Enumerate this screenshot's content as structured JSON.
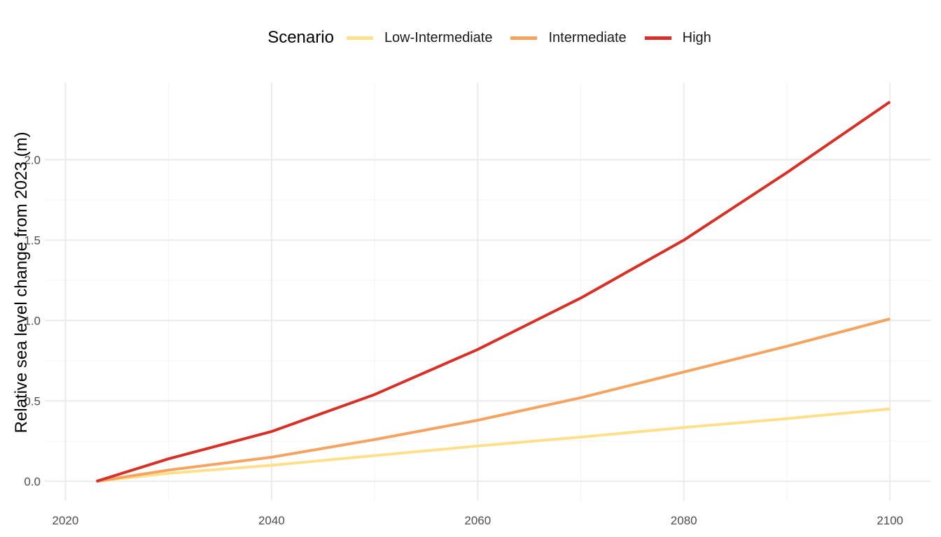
{
  "chart_data": {
    "type": "line",
    "title": "",
    "xlabel": "",
    "ylabel": "Relative sea level change from 2023 (m)",
    "xlim": [
      2018,
      2104
    ],
    "ylim": [
      -0.12,
      2.48
    ],
    "x_ticks": [
      2020,
      2040,
      2060,
      2080,
      2100
    ],
    "y_ticks": [
      0.0,
      0.5,
      1.0,
      1.5,
      2.0
    ],
    "y_tick_labels": [
      "0.0",
      "0.5",
      "1.0",
      "1.5",
      "2.0"
    ],
    "grid": true,
    "legend": {
      "title": "Scenario",
      "position": "top-center"
    },
    "series": [
      {
        "name": "Low-Intermediate",
        "color": "#FEE08B",
        "x": [
          2023,
          2030,
          2040,
          2050,
          2060,
          2070,
          2080,
          2090,
          2100
        ],
        "values": [
          0.0,
          0.05,
          0.1,
          0.16,
          0.22,
          0.275,
          0.335,
          0.39,
          0.45
        ]
      },
      {
        "name": "Intermediate",
        "color": "#F4A460",
        "x": [
          2023,
          2030,
          2040,
          2050,
          2060,
          2070,
          2080,
          2090,
          2100
        ],
        "values": [
          0.0,
          0.07,
          0.15,
          0.26,
          0.38,
          0.52,
          0.68,
          0.84,
          1.01
        ]
      },
      {
        "name": "High",
        "color": "#D73027",
        "x": [
          2023,
          2030,
          2040,
          2050,
          2060,
          2070,
          2080,
          2090,
          2100
        ],
        "values": [
          0.0,
          0.14,
          0.31,
          0.54,
          0.82,
          1.14,
          1.5,
          1.92,
          2.36
        ]
      }
    ]
  }
}
